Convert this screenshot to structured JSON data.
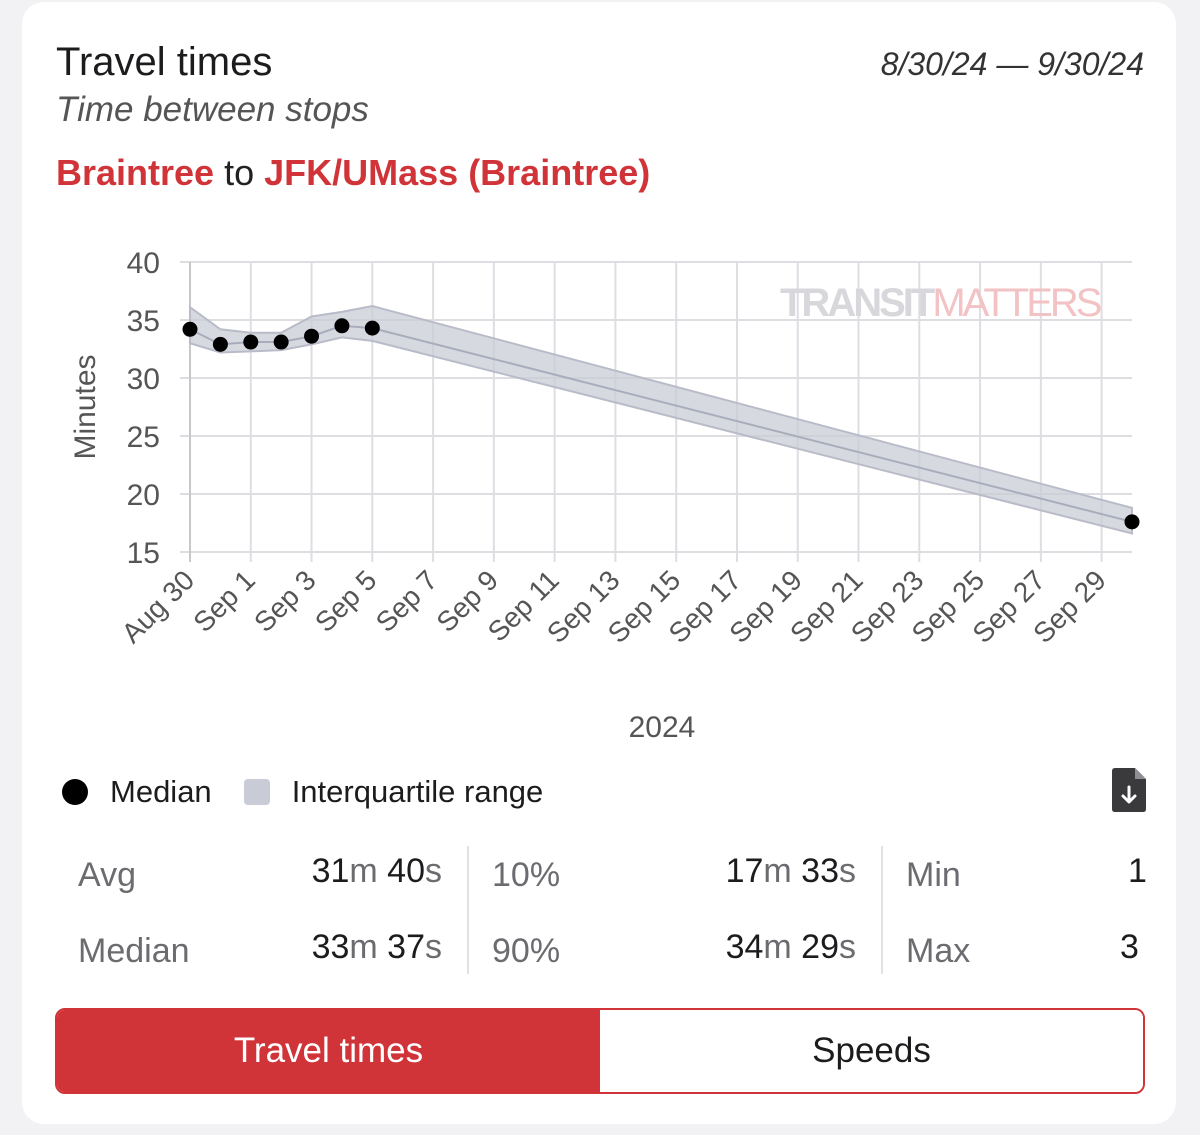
{
  "header": {
    "title": "Travel times",
    "subtitle": "Time between stops",
    "date_range": "8/30/24 — 9/30/24"
  },
  "route": {
    "from": "Braintree",
    "connector": "to",
    "to": "JFK/UMass (Braintree)"
  },
  "watermark": {
    "part1": "TRANSIT",
    "part2": "MATTERS"
  },
  "colors": {
    "accent": "#d13438",
    "band": "#c9ccd6",
    "median": "#000000"
  },
  "chart_data": {
    "type": "line",
    "title": "",
    "xlabel": "2024",
    "ylabel": "Minutes",
    "ylim": [
      15,
      40
    ],
    "yticks": [
      15,
      20,
      25,
      30,
      35,
      40
    ],
    "xlim": [
      "2024-08-30",
      "2024-09-30"
    ],
    "xticks": [
      "Aug 30",
      "Sep 1",
      "Sep 3",
      "Sep 5",
      "Sep 7",
      "Sep 9",
      "Sep 11",
      "Sep 13",
      "Sep 15",
      "Sep 17",
      "Sep 19",
      "Sep 21",
      "Sep 23",
      "Sep 25",
      "Sep 27",
      "Sep 29"
    ],
    "grid": true,
    "series": [
      {
        "name": "Median",
        "points": [
          {
            "x": "2024-08-30",
            "y": 34.2
          },
          {
            "x": "2024-08-31",
            "y": 32.9
          },
          {
            "x": "2024-09-01",
            "y": 33.1
          },
          {
            "x": "2024-09-02",
            "y": 33.1
          },
          {
            "x": "2024-09-03",
            "y": 33.6
          },
          {
            "x": "2024-09-04",
            "y": 34.5
          },
          {
            "x": "2024-09-05",
            "y": 34.3
          },
          {
            "x": "2024-09-30",
            "y": 17.6
          }
        ]
      },
      {
        "name": "Interquartile range",
        "band": [
          {
            "x": "2024-08-30",
            "low": 33.0,
            "high": 36.1
          },
          {
            "x": "2024-08-31",
            "low": 32.2,
            "high": 34.2
          },
          {
            "x": "2024-09-01",
            "low": 32.3,
            "high": 33.9
          },
          {
            "x": "2024-09-02",
            "low": 32.4,
            "high": 33.9
          },
          {
            "x": "2024-09-03",
            "low": 32.9,
            "high": 35.3
          },
          {
            "x": "2024-09-04",
            "low": 33.5,
            "high": 35.7
          },
          {
            "x": "2024-09-05",
            "low": 33.2,
            "high": 36.2
          },
          {
            "x": "2024-09-30",
            "low": 16.6,
            "high": 18.8
          }
        ]
      }
    ]
  },
  "legend": {
    "median": "Median",
    "iqr": "Interquartile range"
  },
  "download_icon": "file-download-icon",
  "stats": {
    "avg_label": "Avg",
    "avg_num1": "31",
    "avg_unit1": "m",
    "avg_num2": "40",
    "avg_unit2": "s",
    "median_label": "Median",
    "median_num1": "33",
    "median_unit1": "m",
    "median_num2": "37",
    "median_unit2": "s",
    "p10_label": "10%",
    "p10_num1": "17",
    "p10_unit1": "m",
    "p10_num2": "33",
    "p10_unit2": "s",
    "p90_label": "90%",
    "p90_num1": "34",
    "p90_unit1": "m",
    "p90_num2": "29",
    "p90_unit2": "s",
    "min_label": "Min",
    "min_value": "1",
    "max_label": "Max",
    "max_value": "3"
  },
  "toggle": {
    "travel_times": "Travel times",
    "speeds": "Speeds"
  }
}
